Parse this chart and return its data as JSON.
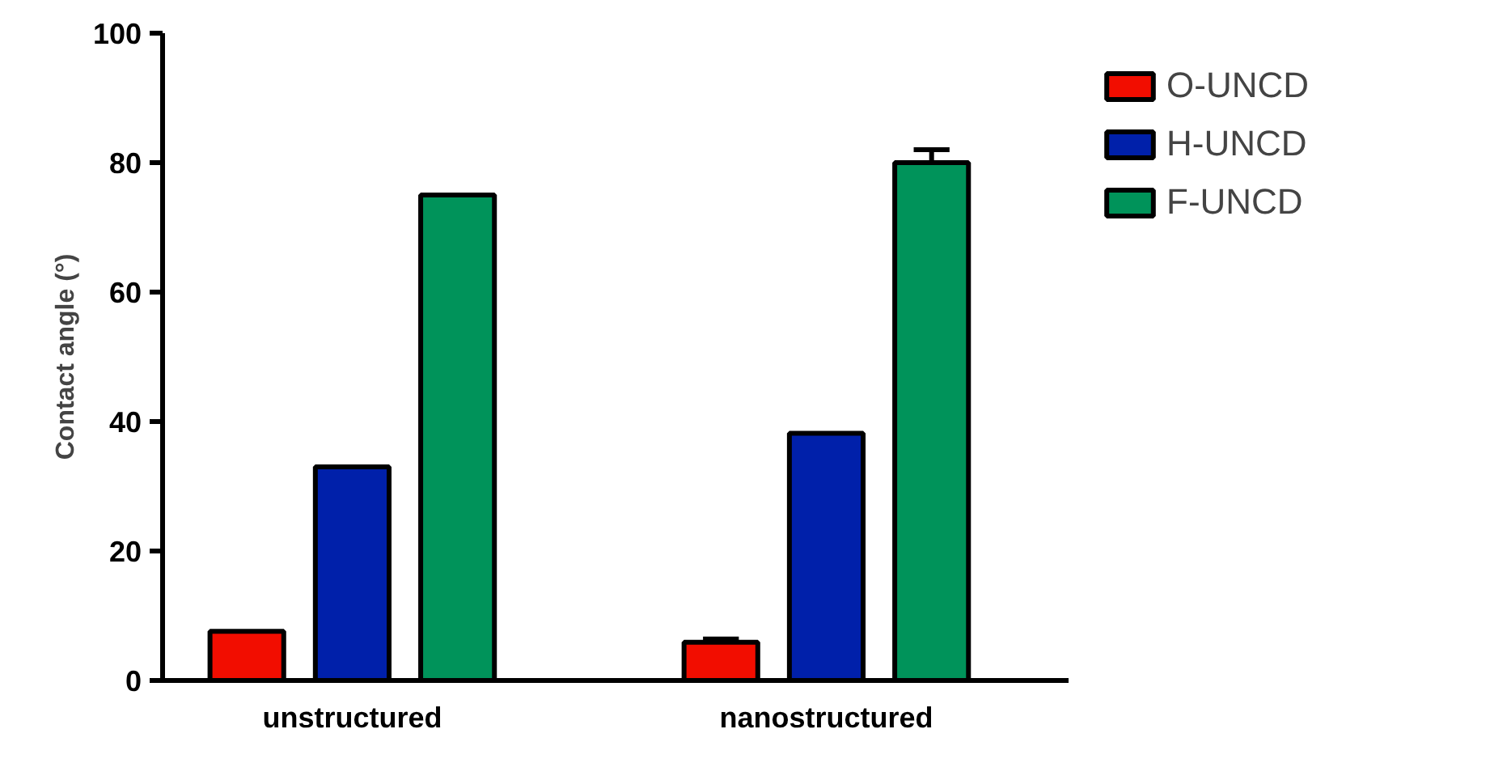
{
  "chart_data": {
    "type": "bar",
    "ylabel": "Contact angle (°)",
    "categories": [
      "unstructured",
      "nanostructured"
    ],
    "series": [
      {
        "name": "O-UNCD",
        "color": "#f20d00",
        "values": [
          7.6,
          5.9
        ],
        "errors": [
          null,
          0.5
        ]
      },
      {
        "name": "H-UNCD",
        "color": "#0020aa",
        "values": [
          33,
          38.2
        ],
        "errors": [
          null,
          null
        ]
      },
      {
        "name": "F-UNCD",
        "color": "#00935a",
        "values": [
          75,
          80
        ],
        "errors": [
          null,
          2
        ]
      }
    ],
    "ylim": [
      0,
      100
    ],
    "yticks": [
      0,
      20,
      40,
      60,
      80,
      100
    ],
    "grid": false,
    "legend": "right"
  }
}
